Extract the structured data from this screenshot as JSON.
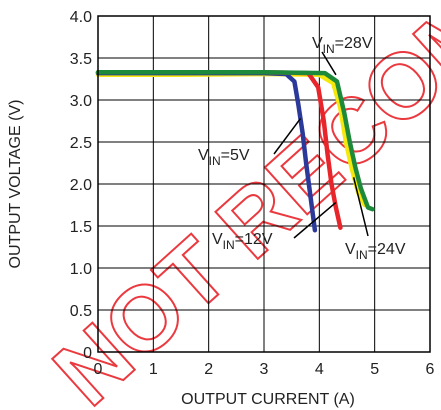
{
  "chart_data": {
    "type": "line",
    "xlabel": "OUTPUT CURRENT (A)",
    "ylabel": "OUTPUT VOLTAGE (V)",
    "xlim": [
      0,
      6
    ],
    "ylim": [
      0,
      4.0
    ],
    "x_ticks": [
      "0",
      "1",
      "2",
      "3",
      "4",
      "5",
      "6"
    ],
    "y_ticks": [
      "0",
      "0.5",
      "1.0",
      "1.5",
      "2.0",
      "2.5",
      "3.0",
      "3.5",
      "4.0"
    ],
    "grid": true,
    "series": [
      {
        "name": "VIN=5V",
        "label_main": "V",
        "label_sub": "IN",
        "label_suffix": "=5V",
        "color": "#2b3a9a",
        "points": [
          [
            0,
            3.32
          ],
          [
            1.5,
            3.32
          ],
          [
            3.0,
            3.32
          ],
          [
            3.4,
            3.31
          ],
          [
            3.55,
            3.22
          ],
          [
            3.62,
            2.95
          ],
          [
            3.7,
            2.6
          ],
          [
            3.76,
            2.25
          ],
          [
            3.82,
            1.95
          ],
          [
            3.88,
            1.65
          ],
          [
            3.92,
            1.45
          ]
        ]
      },
      {
        "name": "VIN=12V",
        "label_main": "V",
        "label_sub": "IN",
        "label_suffix": "=12V",
        "color": "#e8252b",
        "points": [
          [
            0,
            3.33
          ],
          [
            1.5,
            3.33
          ],
          [
            3.0,
            3.33
          ],
          [
            3.8,
            3.32
          ],
          [
            3.98,
            3.15
          ],
          [
            4.08,
            2.75
          ],
          [
            4.15,
            2.35
          ],
          [
            4.22,
            2.0
          ],
          [
            4.3,
            1.72
          ],
          [
            4.38,
            1.48
          ]
        ]
      },
      {
        "name": "VIN=24V",
        "label_main": "V",
        "label_sub": "IN",
        "label_suffix": "=24V",
        "color": "#f5e80c",
        "points": [
          [
            0,
            3.3
          ],
          [
            1.5,
            3.3
          ],
          [
            3.0,
            3.31
          ],
          [
            4.0,
            3.3
          ],
          [
            4.25,
            3.2
          ],
          [
            4.38,
            2.9
          ],
          [
            4.48,
            2.5
          ],
          [
            4.58,
            2.2
          ],
          [
            4.7,
            1.9
          ],
          [
            4.82,
            1.75
          ]
        ]
      },
      {
        "name": "VIN=28V",
        "label_main": "V",
        "label_sub": "IN",
        "label_suffix": "=28V",
        "color": "#1c8a3a",
        "points": [
          [
            0,
            3.33
          ],
          [
            1.5,
            3.33
          ],
          [
            3.0,
            3.33
          ],
          [
            4.1,
            3.32
          ],
          [
            4.32,
            3.22
          ],
          [
            4.45,
            2.85
          ],
          [
            4.55,
            2.5
          ],
          [
            4.65,
            2.2
          ],
          [
            4.75,
            1.95
          ],
          [
            4.88,
            1.72
          ],
          [
            4.96,
            1.7
          ]
        ]
      }
    ],
    "annotations": [
      {
        "series": "VIN=28V",
        "text_main": "V",
        "text_sub": "IN",
        "text_suffix": "=28V"
      },
      {
        "series": "VIN=5V",
        "text_main": "V",
        "text_sub": "IN",
        "text_suffix": "=5V"
      },
      {
        "series": "VIN=12V",
        "text_main": "V",
        "text_sub": "IN",
        "text_suffix": "=12V"
      },
      {
        "series": "VIN=24V",
        "text_main": "V",
        "text_sub": "IN",
        "text_suffix": "=24V"
      }
    ],
    "watermark_text": "NOT RECOMMENDED FOR NEW DESIGNS",
    "watermark_color": "#e8252b"
  }
}
